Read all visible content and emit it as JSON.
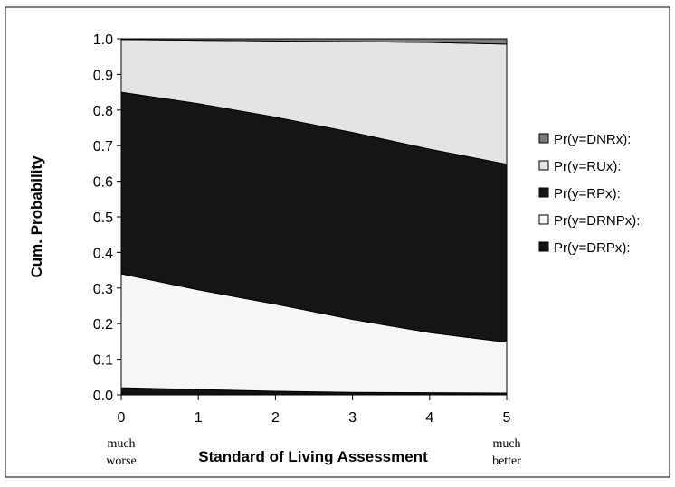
{
  "chart_data": {
    "type": "area",
    "stacked": true,
    "xlabel": "Standard of Living Assessment",
    "ylabel": "Cum. Probability",
    "x": [
      0,
      1,
      2,
      3,
      4,
      5
    ],
    "x_tick_labels": [
      "0",
      "1",
      "2",
      "3",
      "4",
      "5"
    ],
    "x_end_labels": {
      "left": [
        "much",
        "worse"
      ],
      "right": [
        "much",
        "better"
      ]
    },
    "y_ticks": [
      "0.0",
      "0.1",
      "0.2",
      "0.3",
      "0.4",
      "0.5",
      "0.6",
      "0.7",
      "0.8",
      "0.9",
      "1.0"
    ],
    "ylim": [
      0,
      1
    ],
    "xlim": [
      0,
      5
    ],
    "grid": false,
    "legend_position": "right",
    "series": [
      {
        "name": "Pr(y=DRPx):",
        "color": "#111111",
        "cum_upper": [
          0.02,
          0.015,
          0.01,
          0.007,
          0.006,
          0.005
        ]
      },
      {
        "name": "Pr(y=DRNPx):",
        "color": "#f6f6f6",
        "cum_upper": [
          0.34,
          0.295,
          0.255,
          0.212,
          0.175,
          0.148
        ]
      },
      {
        "name": "Pr(y=RPx):",
        "color": "#151515",
        "cum_upper": [
          0.85,
          0.818,
          0.78,
          0.737,
          0.69,
          0.648
        ]
      },
      {
        "name": "Pr(y=RUx):",
        "color": "#e4e4e4",
        "cum_upper": [
          0.998,
          0.996,
          0.994,
          0.992,
          0.99,
          0.985
        ]
      },
      {
        "name": "Pr(y=DNRx):",
        "color": "#7a7a7a",
        "cum_upper": [
          1.0,
          1.0,
          1.0,
          1.0,
          1.0,
          1.0
        ]
      }
    ],
    "legend_order": [
      "Pr(y=DNRx):",
      "Pr(y=RUx):",
      "Pr(y=RPx):",
      "Pr(y=DRNPx):",
      "Pr(y=DRPx):"
    ]
  }
}
